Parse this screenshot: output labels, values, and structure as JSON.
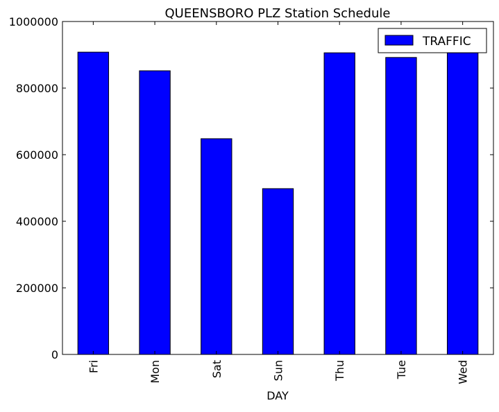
{
  "chart_data": {
    "type": "bar",
    "title": "QUEENSBORO PLZ Station Schedule",
    "xlabel": "DAY",
    "ylabel": "",
    "categories": [
      "Fri",
      "Mon",
      "Sat",
      "Sun",
      "Thu",
      "Tue",
      "Wed"
    ],
    "series": [
      {
        "name": "TRAFFIC",
        "values": [
          908000,
          852000,
          648000,
          498000,
          906000,
          892000,
          906000
        ],
        "color": "#0000ff"
      }
    ],
    "ylim": [
      0,
      1000000
    ],
    "yticks": [
      "0",
      "200000",
      "400000",
      "600000",
      "800000",
      "1000000"
    ],
    "legend": "top-right",
    "grid": false
  }
}
